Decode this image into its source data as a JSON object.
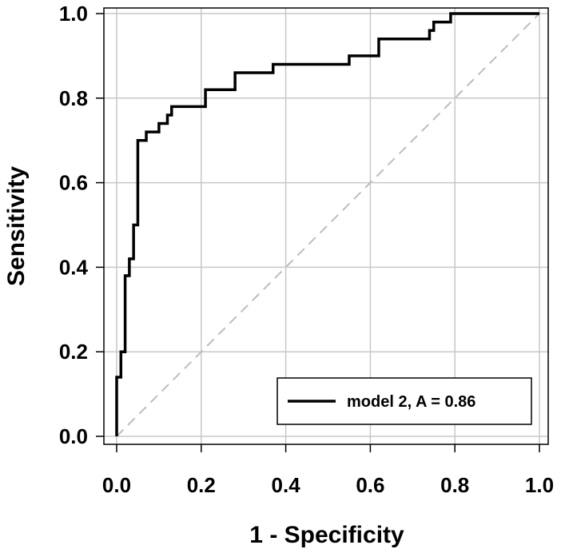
{
  "chart_data": {
    "type": "line",
    "title": "",
    "xlabel": "1 - Specificity",
    "ylabel": "Sensitivity",
    "xlim": [
      0,
      1
    ],
    "ylim": [
      0,
      1
    ],
    "x_ticks": [
      "0.0",
      "0.2",
      "0.4",
      "0.6",
      "0.8",
      "1.0"
    ],
    "y_ticks": [
      "0.0",
      "0.2",
      "0.4",
      "0.6",
      "0.8",
      "1.0"
    ],
    "grid": true,
    "legend": {
      "position": "bottom-right",
      "entries": [
        "model 2, A = 0.86"
      ]
    },
    "series": [
      {
        "name": "model 2, A = 0.86",
        "color": "#000000",
        "style": "solid",
        "points": [
          [
            0.0,
            0.0
          ],
          [
            0.0,
            0.14
          ],
          [
            0.01,
            0.14
          ],
          [
            0.01,
            0.2
          ],
          [
            0.02,
            0.2
          ],
          [
            0.02,
            0.38
          ],
          [
            0.03,
            0.38
          ],
          [
            0.03,
            0.42
          ],
          [
            0.04,
            0.42
          ],
          [
            0.04,
            0.5
          ],
          [
            0.05,
            0.5
          ],
          [
            0.05,
            0.7
          ],
          [
            0.07,
            0.7
          ],
          [
            0.07,
            0.72
          ],
          [
            0.1,
            0.72
          ],
          [
            0.1,
            0.74
          ],
          [
            0.12,
            0.74
          ],
          [
            0.12,
            0.76
          ],
          [
            0.13,
            0.76
          ],
          [
            0.13,
            0.78
          ],
          [
            0.21,
            0.78
          ],
          [
            0.21,
            0.82
          ],
          [
            0.28,
            0.82
          ],
          [
            0.28,
            0.86
          ],
          [
            0.37,
            0.86
          ],
          [
            0.37,
            0.88
          ],
          [
            0.55,
            0.88
          ],
          [
            0.55,
            0.9
          ],
          [
            0.62,
            0.9
          ],
          [
            0.62,
            0.94
          ],
          [
            0.74,
            0.94
          ],
          [
            0.74,
            0.96
          ],
          [
            0.75,
            0.96
          ],
          [
            0.75,
            0.98
          ],
          [
            0.79,
            0.98
          ],
          [
            0.79,
            1.0
          ],
          [
            1.0,
            1.0
          ]
        ]
      },
      {
        "name": "",
        "color": "#bdbdbd",
        "style": "dashed",
        "points": [
          [
            0.0,
            0.0
          ],
          [
            1.0,
            1.0
          ]
        ]
      }
    ]
  }
}
